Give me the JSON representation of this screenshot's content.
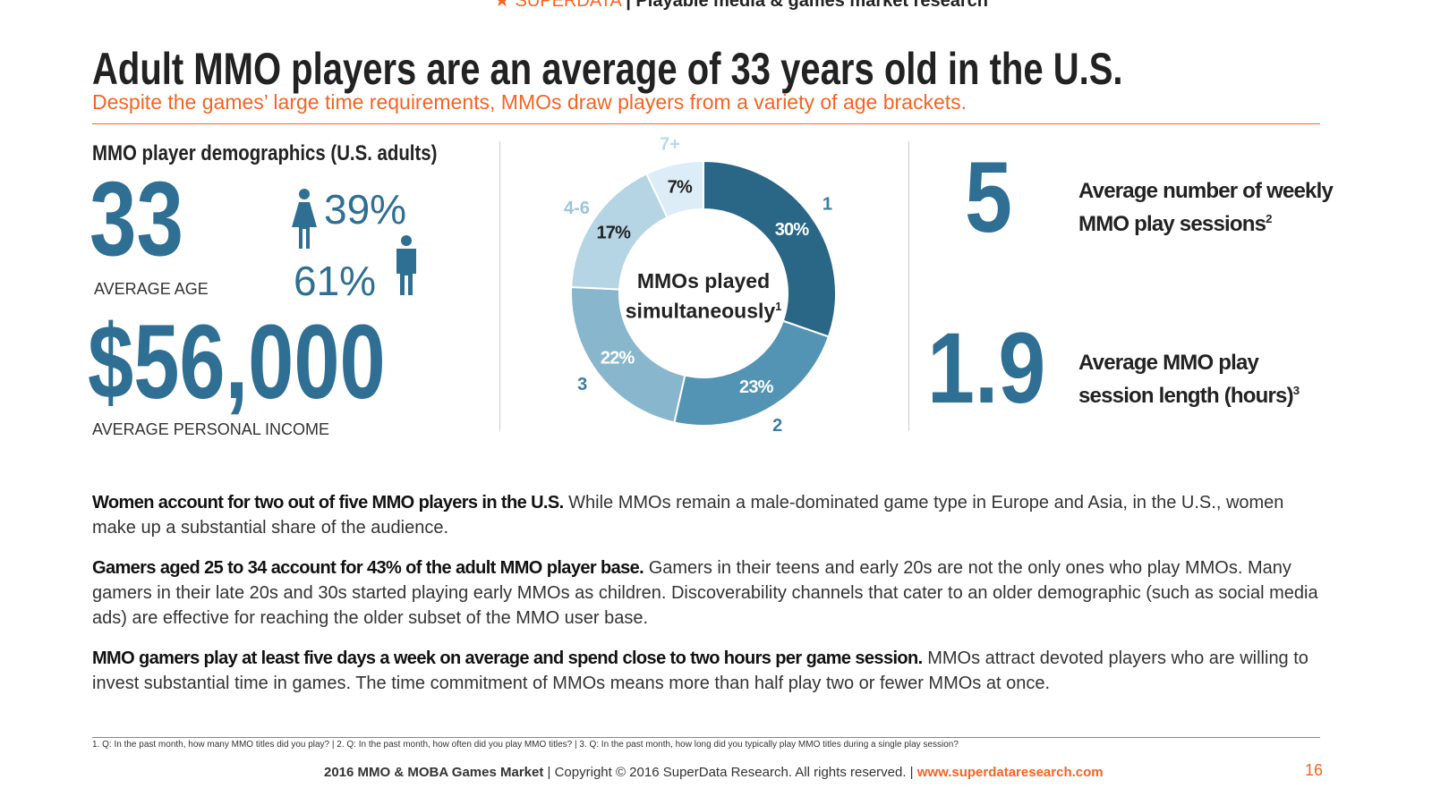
{
  "header": {
    "brand": "SUPERDATA",
    "tagline": "Playable media & games market research"
  },
  "title": "Adult MMO players are an average of 33 years old in the U.S.",
  "subtitle": "Despite the games’ large time requirements, MMOs draw players from a variety of age brackets.",
  "demographics": {
    "heading": "MMO player demographics (U.S. adults)",
    "age": "33",
    "age_label": "AVERAGE AGE",
    "female": "39%",
    "male": "61%",
    "income": "$56,000",
    "income_label": "AVERAGE PERSONAL INCOME"
  },
  "chart_data": {
    "type": "pie",
    "title": "MMOs played simultaneously",
    "title_note": "1",
    "categories": [
      "1",
      "2",
      "3",
      "4-6",
      "7+"
    ],
    "values": [
      30,
      23,
      22,
      17,
      7
    ],
    "value_labels": [
      "30%",
      "23%",
      "22%",
      "17%",
      "7%"
    ],
    "colors": [
      "#2a6686",
      "#5393b4",
      "#88b6cd",
      "#b5d4e4",
      "#dcedf7"
    ],
    "value_label_colors": [
      "#ffffff",
      "#ffffff",
      "#ffffff",
      "#222222",
      "#222222"
    ],
    "category_label_colors": [
      "#3a7da0",
      "#3a7da0",
      "#3a7da0",
      "#9cc5da",
      "#b9d9ea"
    ]
  },
  "stats": [
    {
      "value": "5",
      "label": "Average number of weekly MMO play sessions",
      "note": "2"
    },
    {
      "value": "1.9",
      "label": "Average MMO play session length (hours)",
      "note": "3"
    }
  ],
  "paragraphs": [
    {
      "lead": "Women account for two out of five MMO players in the U.S.",
      "text": "While MMOs remain a male-dominated game type in Europe and Asia, in the U.S., women make up a substantial share of the audience."
    },
    {
      "lead": "Gamers aged 25 to 34 account for 43% of the adult MMO player base.",
      "text": "Gamers in their teens and early 20s are not the only ones who play MMOs. Many gamers in their late 20s and 30s started playing early MMOs as children. Discoverability channels that cater to an older demographic (such as social media ads) are effective for reaching the older subset of the MMO user base."
    },
    {
      "lead": "MMO gamers play at least five days a week on average and spend close to two hours per game session.",
      "text": "MMOs attract devoted players who are willing to invest substantial time in games. The time commitment of MMOs means more than half play two or fewer MMOs at once."
    }
  ],
  "footnote": "1. Q: In the past month, how many MMO titles did you play? | 2. Q: In the past month, how often did you play MMO titles? | 3. Q: In the past month, how long did you typically play MMO titles during a single play session?",
  "footer": {
    "report": "2016 MMO & MOBA Games Market",
    "copyright": "| Copyright © 2016 SuperData Research. All rights reserved. |",
    "url": "www.superdataresearch.com"
  },
  "page_number": "16"
}
